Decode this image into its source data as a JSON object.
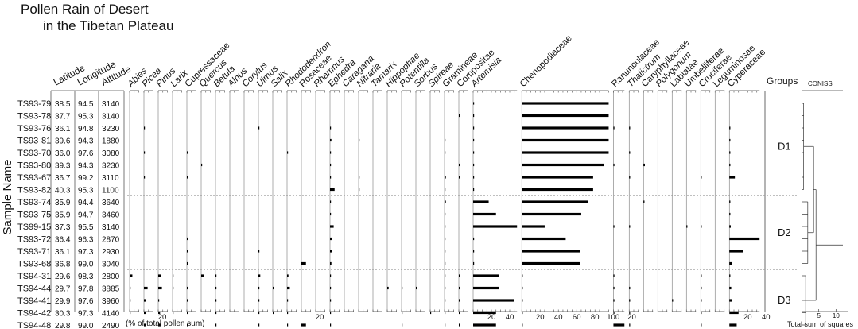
{
  "chart_data": {
    "type": "pollen-diagram",
    "title": "Pollen Rain of Desert\nin the Tibetan Plateau",
    "ylabel": "Sample Name",
    "xlabel": "(% of total pollen sum)",
    "columns": [
      "Latitude",
      "Longitude",
      "Altitude"
    ],
    "samples": [
      {
        "name": "TS93-79",
        "lat": "38.5",
        "lon": "94.5",
        "alt": "3140"
      },
      {
        "name": "TS93-78",
        "lat": "37.7",
        "lon": "95.3",
        "alt": "3140"
      },
      {
        "name": "TS93-76",
        "lat": "36.1",
        "lon": "94.8",
        "alt": "3230"
      },
      {
        "name": "TS93-81",
        "lat": "39.6",
        "lon": "94.3",
        "alt": "1880"
      },
      {
        "name": "TS93-70",
        "lat": "36.0",
        "lon": "97.6",
        "alt": "3080"
      },
      {
        "name": "TS93-80",
        "lat": "39.3",
        "lon": "94.3",
        "alt": "3230"
      },
      {
        "name": "TS93-67",
        "lat": "36.7",
        "lon": "99.2",
        "alt": "3110"
      },
      {
        "name": "TS93-82",
        "lat": "40.3",
        "lon": "95.3",
        "alt": "1100"
      },
      {
        "name": "TS93-74",
        "lat": "35.9",
        "lon": "94.4",
        "alt": "3640"
      },
      {
        "name": "TS93-75",
        "lat": "35.9",
        "lon": "94.7",
        "alt": "3460"
      },
      {
        "name": "TS99-15",
        "lat": "37.3",
        "lon": "95.5",
        "alt": "3140"
      },
      {
        "name": "TS93-72",
        "lat": "36.4",
        "lon": "96.3",
        "alt": "2870"
      },
      {
        "name": "TS93-71",
        "lat": "36.1",
        "lon": "97.3",
        "alt": "2930"
      },
      {
        "name": "TS93-68",
        "lat": "36.8",
        "lon": "99.0",
        "alt": "3040"
      },
      {
        "name": "TS94-31",
        "lat": "29.6",
        "lon": "98.3",
        "alt": "2800"
      },
      {
        "name": "TS94-44",
        "lat": "29.7",
        "lon": "97.8",
        "alt": "3885"
      },
      {
        "name": "TS94-41",
        "lat": "29.9",
        "lon": "97.6",
        "alt": "3960"
      },
      {
        "name": "TS94-42",
        "lat": "30.3",
        "lon": "97.3",
        "alt": "4140"
      },
      {
        "name": "TS94-48",
        "lat": "29.8",
        "lon": "99.0",
        "alt": "2490"
      }
    ],
    "taxa": [
      {
        "name": "Abies",
        "italic": true,
        "ticks": [],
        "values": [
          0,
          0,
          0,
          0,
          0,
          0,
          0,
          0,
          0,
          0,
          0,
          0,
          0,
          0,
          3,
          1,
          1,
          1,
          1
        ]
      },
      {
        "name": "Picea",
        "italic": true,
        "ticks": [
          "20"
        ],
        "values": [
          0,
          0,
          0.5,
          0,
          0.5,
          0,
          0.5,
          0,
          0,
          0,
          0,
          0,
          0,
          0,
          0,
          4,
          2,
          2,
          2
        ]
      },
      {
        "name": "Pinus",
        "italic": true,
        "ticks": [],
        "values": [
          0,
          0,
          0,
          0,
          0,
          0,
          0,
          0,
          0,
          0,
          0,
          0,
          0,
          0,
          3,
          4,
          1,
          2,
          3
        ]
      },
      {
        "name": "Larix",
        "italic": true,
        "ticks": [],
        "values": [
          0,
          0,
          0,
          0,
          0,
          0,
          0,
          0,
          0,
          0,
          0,
          0,
          0,
          0,
          0.5,
          0.5,
          0,
          0.5,
          0
        ]
      },
      {
        "name": "Cupressaceae",
        "italic": false,
        "ticks": [],
        "values": [
          0,
          0,
          0,
          0,
          1.5,
          0,
          0.5,
          0,
          0,
          0,
          0,
          0.5,
          0.5,
          0.5,
          0,
          1,
          1,
          1,
          1
        ]
      },
      {
        "name": "Quercus",
        "italic": true,
        "ticks": [],
        "values": [
          0,
          0,
          0,
          0,
          0,
          0.5,
          0,
          0,
          0,
          0,
          0,
          0,
          0,
          0,
          3,
          0,
          0,
          0,
          0
        ]
      },
      {
        "name": "Betula",
        "italic": true,
        "ticks": [],
        "values": [
          0,
          0,
          0,
          0,
          0,
          0,
          0,
          0,
          0,
          0,
          0,
          0,
          0,
          0,
          0.5,
          0.5,
          0.5,
          0.5,
          0.5
        ]
      },
      {
        "name": "Alnus",
        "italic": true,
        "ticks": [],
        "values": [
          0,
          0,
          0,
          0,
          0,
          0,
          0,
          0,
          0,
          0,
          0,
          0,
          0,
          0,
          0,
          0,
          0,
          0,
          0
        ]
      },
      {
        "name": "Corylus",
        "italic": true,
        "ticks": [],
        "values": [
          0,
          0,
          0,
          0,
          0,
          0,
          0,
          0,
          0,
          0,
          0,
          0,
          0,
          0,
          0,
          0,
          0,
          0,
          0
        ]
      },
      {
        "name": "Ulmus",
        "italic": true,
        "ticks": [],
        "values": [
          0,
          0,
          0.5,
          0,
          0,
          0,
          0,
          0,
          0,
          0,
          0,
          0,
          0.5,
          0,
          2,
          1,
          0.5,
          1,
          0.5
        ]
      },
      {
        "name": "Salix",
        "italic": true,
        "ticks": [],
        "values": [
          0,
          0,
          0,
          0,
          0,
          0,
          0,
          0,
          0,
          0,
          0,
          0,
          0,
          0,
          0,
          0.5,
          0,
          0.5,
          0
        ]
      },
      {
        "name": "Rhododendron",
        "italic": true,
        "ticks": [],
        "values": [
          0,
          0,
          0,
          0,
          0.5,
          0,
          0,
          0,
          0,
          0,
          0,
          0,
          0,
          0,
          1.5,
          3,
          1,
          1,
          1
        ]
      },
      {
        "name": "Rosaceae",
        "italic": false,
        "ticks": [
          "20"
        ],
        "values": [
          0,
          0,
          0,
          0,
          0,
          0,
          0,
          0,
          0,
          0,
          0,
          0,
          0,
          5,
          0,
          0,
          0,
          0,
          5
        ]
      },
      {
        "name": "Rhamnus",
        "italic": true,
        "ticks": [],
        "values": [
          0,
          0,
          0,
          0,
          0,
          0,
          0,
          0,
          0,
          0,
          0,
          0,
          0,
          0,
          0,
          0,
          0,
          0,
          0
        ]
      },
      {
        "name": "Ephedra",
        "italic": true,
        "ticks": [],
        "values": [
          0,
          0,
          0.5,
          1.5,
          0.5,
          0.5,
          0.5,
          5,
          1,
          1,
          4,
          2.5,
          2,
          1.5,
          0.5,
          0.5,
          0.5,
          0.5,
          0.5
        ]
      },
      {
        "name": "Caragana",
        "italic": true,
        "ticks": [],
        "values": [
          0,
          0,
          0,
          0,
          0,
          0,
          0,
          0,
          0,
          0,
          0,
          0,
          0,
          0,
          0,
          0,
          0,
          0,
          0
        ]
      },
      {
        "name": "Nitraria",
        "italic": true,
        "ticks": [],
        "values": [
          0,
          0,
          0,
          0.5,
          0,
          0,
          1,
          1,
          0,
          0,
          0,
          0,
          0,
          0,
          0,
          0,
          0,
          0,
          0
        ]
      },
      {
        "name": "Tamarix",
        "italic": true,
        "ticks": [],
        "values": [
          0,
          0,
          0,
          0,
          0,
          0,
          0,
          0,
          0,
          0,
          0,
          0,
          0,
          0,
          0,
          0,
          0,
          0,
          0
        ]
      },
      {
        "name": "Hippophae",
        "italic": true,
        "ticks": [],
        "values": [
          0,
          0,
          0,
          0,
          0,
          0,
          0,
          0,
          0,
          0,
          0,
          0,
          0,
          0,
          0,
          1.5,
          0,
          0,
          0
        ]
      },
      {
        "name": "Potentilla",
        "italic": true,
        "ticks": [],
        "values": [
          0,
          0,
          0,
          0,
          0,
          0,
          0,
          0,
          0,
          0,
          0,
          0,
          0,
          0,
          0,
          0.5,
          0,
          0.5,
          0.5
        ]
      },
      {
        "name": "Sorbus",
        "italic": true,
        "ticks": [],
        "values": [
          0,
          0,
          0,
          0,
          0,
          0,
          0,
          0,
          0,
          0,
          0,
          0,
          0,
          0,
          0,
          0.5,
          0,
          0,
          0
        ]
      },
      {
        "name": "Spireae",
        "italic": true,
        "ticks": [],
        "values": [
          0,
          0,
          0,
          0,
          0,
          0,
          0,
          0,
          0,
          0,
          0,
          0,
          0,
          0,
          0,
          0,
          0,
          0.5,
          0
        ]
      },
      {
        "name": "Gramineae",
        "italic": false,
        "ticks": [],
        "values": [
          0,
          0,
          0,
          0.5,
          0.5,
          0,
          1.5,
          0.5,
          1.5,
          0.5,
          0.5,
          0.5,
          0.5,
          0.5,
          1,
          1,
          1,
          1,
          1
        ]
      },
      {
        "name": "Compositae",
        "italic": false,
        "ticks": [],
        "values": [
          0,
          0.5,
          0,
          0,
          0,
          0.5,
          0.5,
          0,
          0,
          0,
          0,
          0,
          0,
          0,
          0.5,
          0.5,
          1,
          1,
          1
        ]
      },
      {
        "name": "Artemisia",
        "italic": true,
        "ticks": [
          "20",
          "40"
        ],
        "values": [
          0.5,
          0.5,
          1,
          0.5,
          0.5,
          1,
          1,
          1,
          17,
          25,
          48,
          0.5,
          0.5,
          0.5,
          28,
          28,
          45,
          25,
          25
        ]
      },
      {
        "name": "Chenopodiaceae",
        "italic": false,
        "ticks": [
          "20",
          "40",
          "60",
          "80",
          "100"
        ],
        "values": [
          95,
          95,
          95,
          95,
          95,
          90,
          78,
          78,
          72,
          65,
          25,
          48,
          64,
          64,
          1,
          1,
          1,
          1,
          1
        ]
      },
      {
        "name": "Ranunculaceae",
        "italic": false,
        "ticks": [
          "20"
        ],
        "values": [
          0,
          0,
          0.5,
          0,
          0,
          0.5,
          0,
          0,
          0,
          0,
          0.5,
          0,
          0,
          0,
          0.5,
          0.5,
          0.5,
          0.5,
          12
        ]
      },
      {
        "name": "Thalictrum",
        "italic": true,
        "ticks": [],
        "values": [
          0,
          0,
          0.5,
          0,
          0.5,
          0,
          1,
          0,
          0,
          0,
          0.5,
          0,
          0,
          0,
          0,
          0.5,
          0.5,
          0.5,
          0.5
        ]
      },
      {
        "name": "Caryphyllaceae",
        "italic": false,
        "ticks": [],
        "values": [
          0,
          0,
          0,
          0,
          0,
          1.5,
          0,
          0,
          0.5,
          0,
          0,
          0,
          0,
          0,
          0,
          0,
          0,
          0,
          0
        ]
      },
      {
        "name": "Polygonum",
        "italic": true,
        "ticks": [],
        "values": [
          0,
          0,
          0,
          0,
          0,
          0,
          0,
          0,
          0,
          0,
          0,
          0,
          0,
          0,
          0,
          0,
          0,
          0,
          0
        ]
      },
      {
        "name": "Labiatae",
        "italic": false,
        "ticks": [],
        "values": [
          0,
          0,
          0,
          0,
          0,
          0,
          0,
          0,
          0,
          0,
          0,
          0,
          0,
          0,
          0,
          0,
          0.5,
          0,
          0
        ]
      },
      {
        "name": "Umbelliferae",
        "italic": false,
        "ticks": [],
        "values": [
          0,
          0,
          0,
          0,
          0,
          0,
          0,
          0,
          0,
          0,
          0.5,
          0,
          0,
          0,
          0,
          0,
          0,
          0,
          0
        ]
      },
      {
        "name": "Cruciferae",
        "italic": false,
        "ticks": [],
        "values": [
          0,
          0,
          0,
          0,
          0,
          0,
          0.5,
          0,
          0,
          0,
          1,
          0,
          0,
          0,
          1,
          1,
          1,
          1,
          1
        ]
      },
      {
        "name": "Leguminosae",
        "italic": false,
        "ticks": [],
        "values": [
          0,
          0,
          0,
          0,
          0,
          0,
          0,
          0,
          0,
          0,
          0,
          0,
          0,
          0,
          0,
          0,
          0,
          0,
          0
        ]
      },
      {
        "name": "Cyperaceae",
        "italic": false,
        "ticks": [
          "20",
          "40"
        ],
        "values": [
          0,
          0,
          0.5,
          0.5,
          0.5,
          0.5,
          6,
          0,
          0.5,
          1,
          1.5,
          33,
          15,
          3,
          1,
          2,
          3,
          10,
          8
        ]
      }
    ],
    "groups": {
      "label": "Groups",
      "items": [
        {
          "name": "D1",
          "from": 0,
          "to": 7
        },
        {
          "name": "D2",
          "from": 8,
          "to": 13
        },
        {
          "name": "D3",
          "from": 14,
          "to": 18
        }
      ]
    },
    "coniss": {
      "label": "CONISS",
      "xlabel": "Total sum of squares",
      "ticks": [
        "5",
        "10"
      ],
      "xlim": [
        0,
        12
      ]
    }
  }
}
